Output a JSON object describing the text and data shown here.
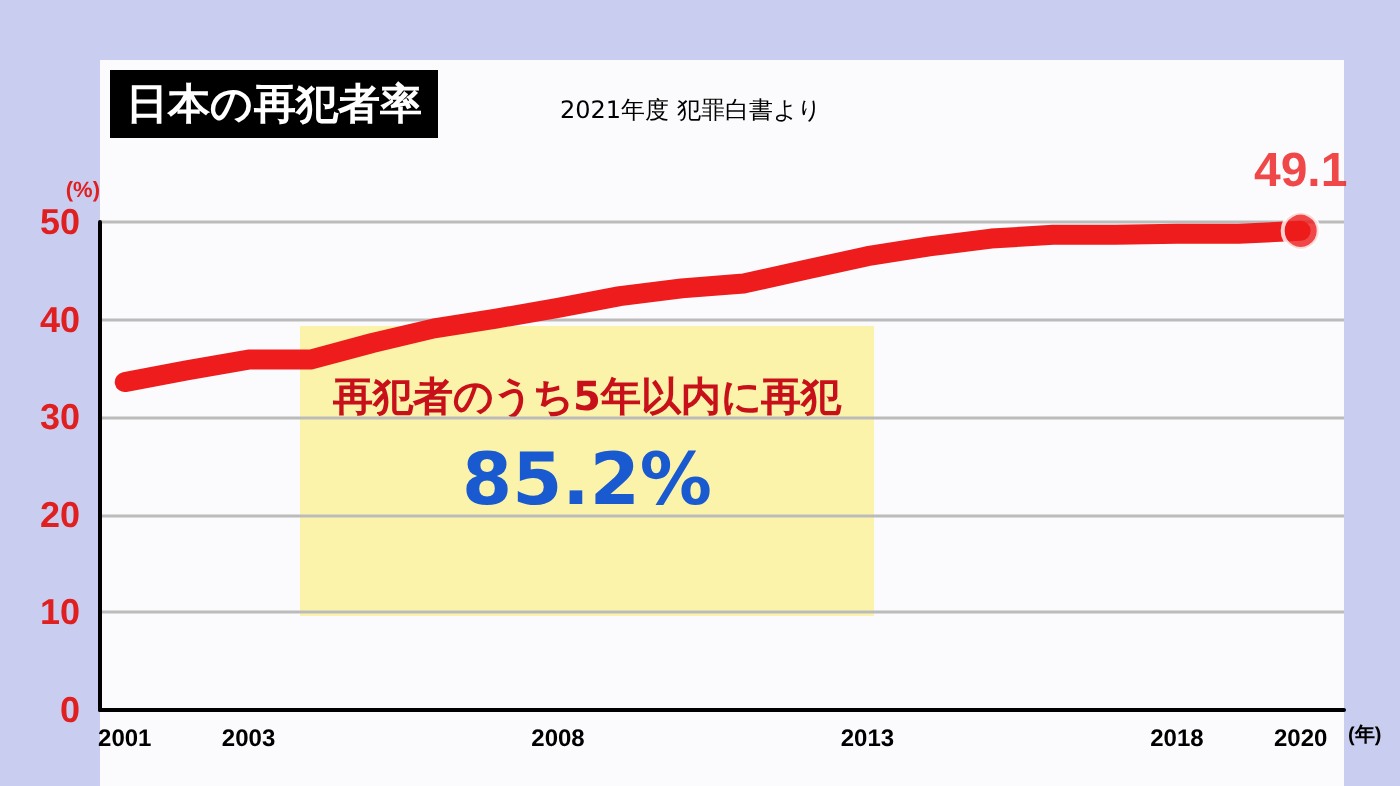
{
  "chart_data": {
    "type": "line",
    "title": "日本の再犯者率",
    "subtitle": "2021年度 犯罪白書より",
    "ylabel": "(%)",
    "xlabel": "(年)",
    "x": [
      2001,
      2002,
      2003,
      2004,
      2005,
      2006,
      2007,
      2008,
      2009,
      2010,
      2011,
      2012,
      2013,
      2014,
      2015,
      2016,
      2017,
      2018,
      2019,
      2020
    ],
    "series": [
      {
        "color": "#ee1c1c",
        "values": [
          33.6,
          34.8,
          35.9,
          35.9,
          37.6,
          39.1,
          40.1,
          41.2,
          42.4,
          43.2,
          43.7,
          45.1,
          46.5,
          47.5,
          48.3,
          48.7,
          48.7,
          48.8,
          48.8,
          49.1
        ]
      },
      {
        "type": "scatter",
        "color": "#ee1c1c",
        "x": [
          2020
        ],
        "values": [
          49.1
        ],
        "value_labels": [
          "49.1"
        ],
        "marker": "circle"
      }
    ],
    "xlim": [
      2000.6,
      2020.7
    ],
    "xticks": [
      2001,
      2003,
      2008,
      2013,
      2018,
      2020
    ],
    "ylim": [
      0,
      50
    ],
    "yticks": [
      0,
      10,
      20,
      30,
      40,
      50
    ],
    "grid": "y",
    "marker": "none",
    "line_style": "solid",
    "annotations": [
      "再犯者のうち5年以内に再犯",
      "85.2%"
    ]
  }
}
